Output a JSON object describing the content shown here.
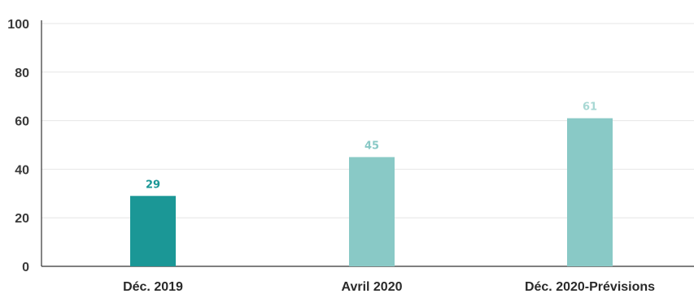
{
  "chart_data": {
    "type": "bar",
    "categories": [
      "Déc. 2019",
      "Avril 2020",
      "Déc. 2020-Prévisions"
    ],
    "values": [
      29,
      45,
      61
    ],
    "ylim": [
      0,
      100
    ],
    "yticks": [
      0,
      20,
      40,
      60,
      80,
      100
    ],
    "grid": true,
    "bar_colors": [
      "#1b9796",
      "#89c9c6",
      "#89c9c6"
    ],
    "label_colors": [
      "#1b9796",
      "#89c9c6",
      "#a8d8d4"
    ]
  }
}
